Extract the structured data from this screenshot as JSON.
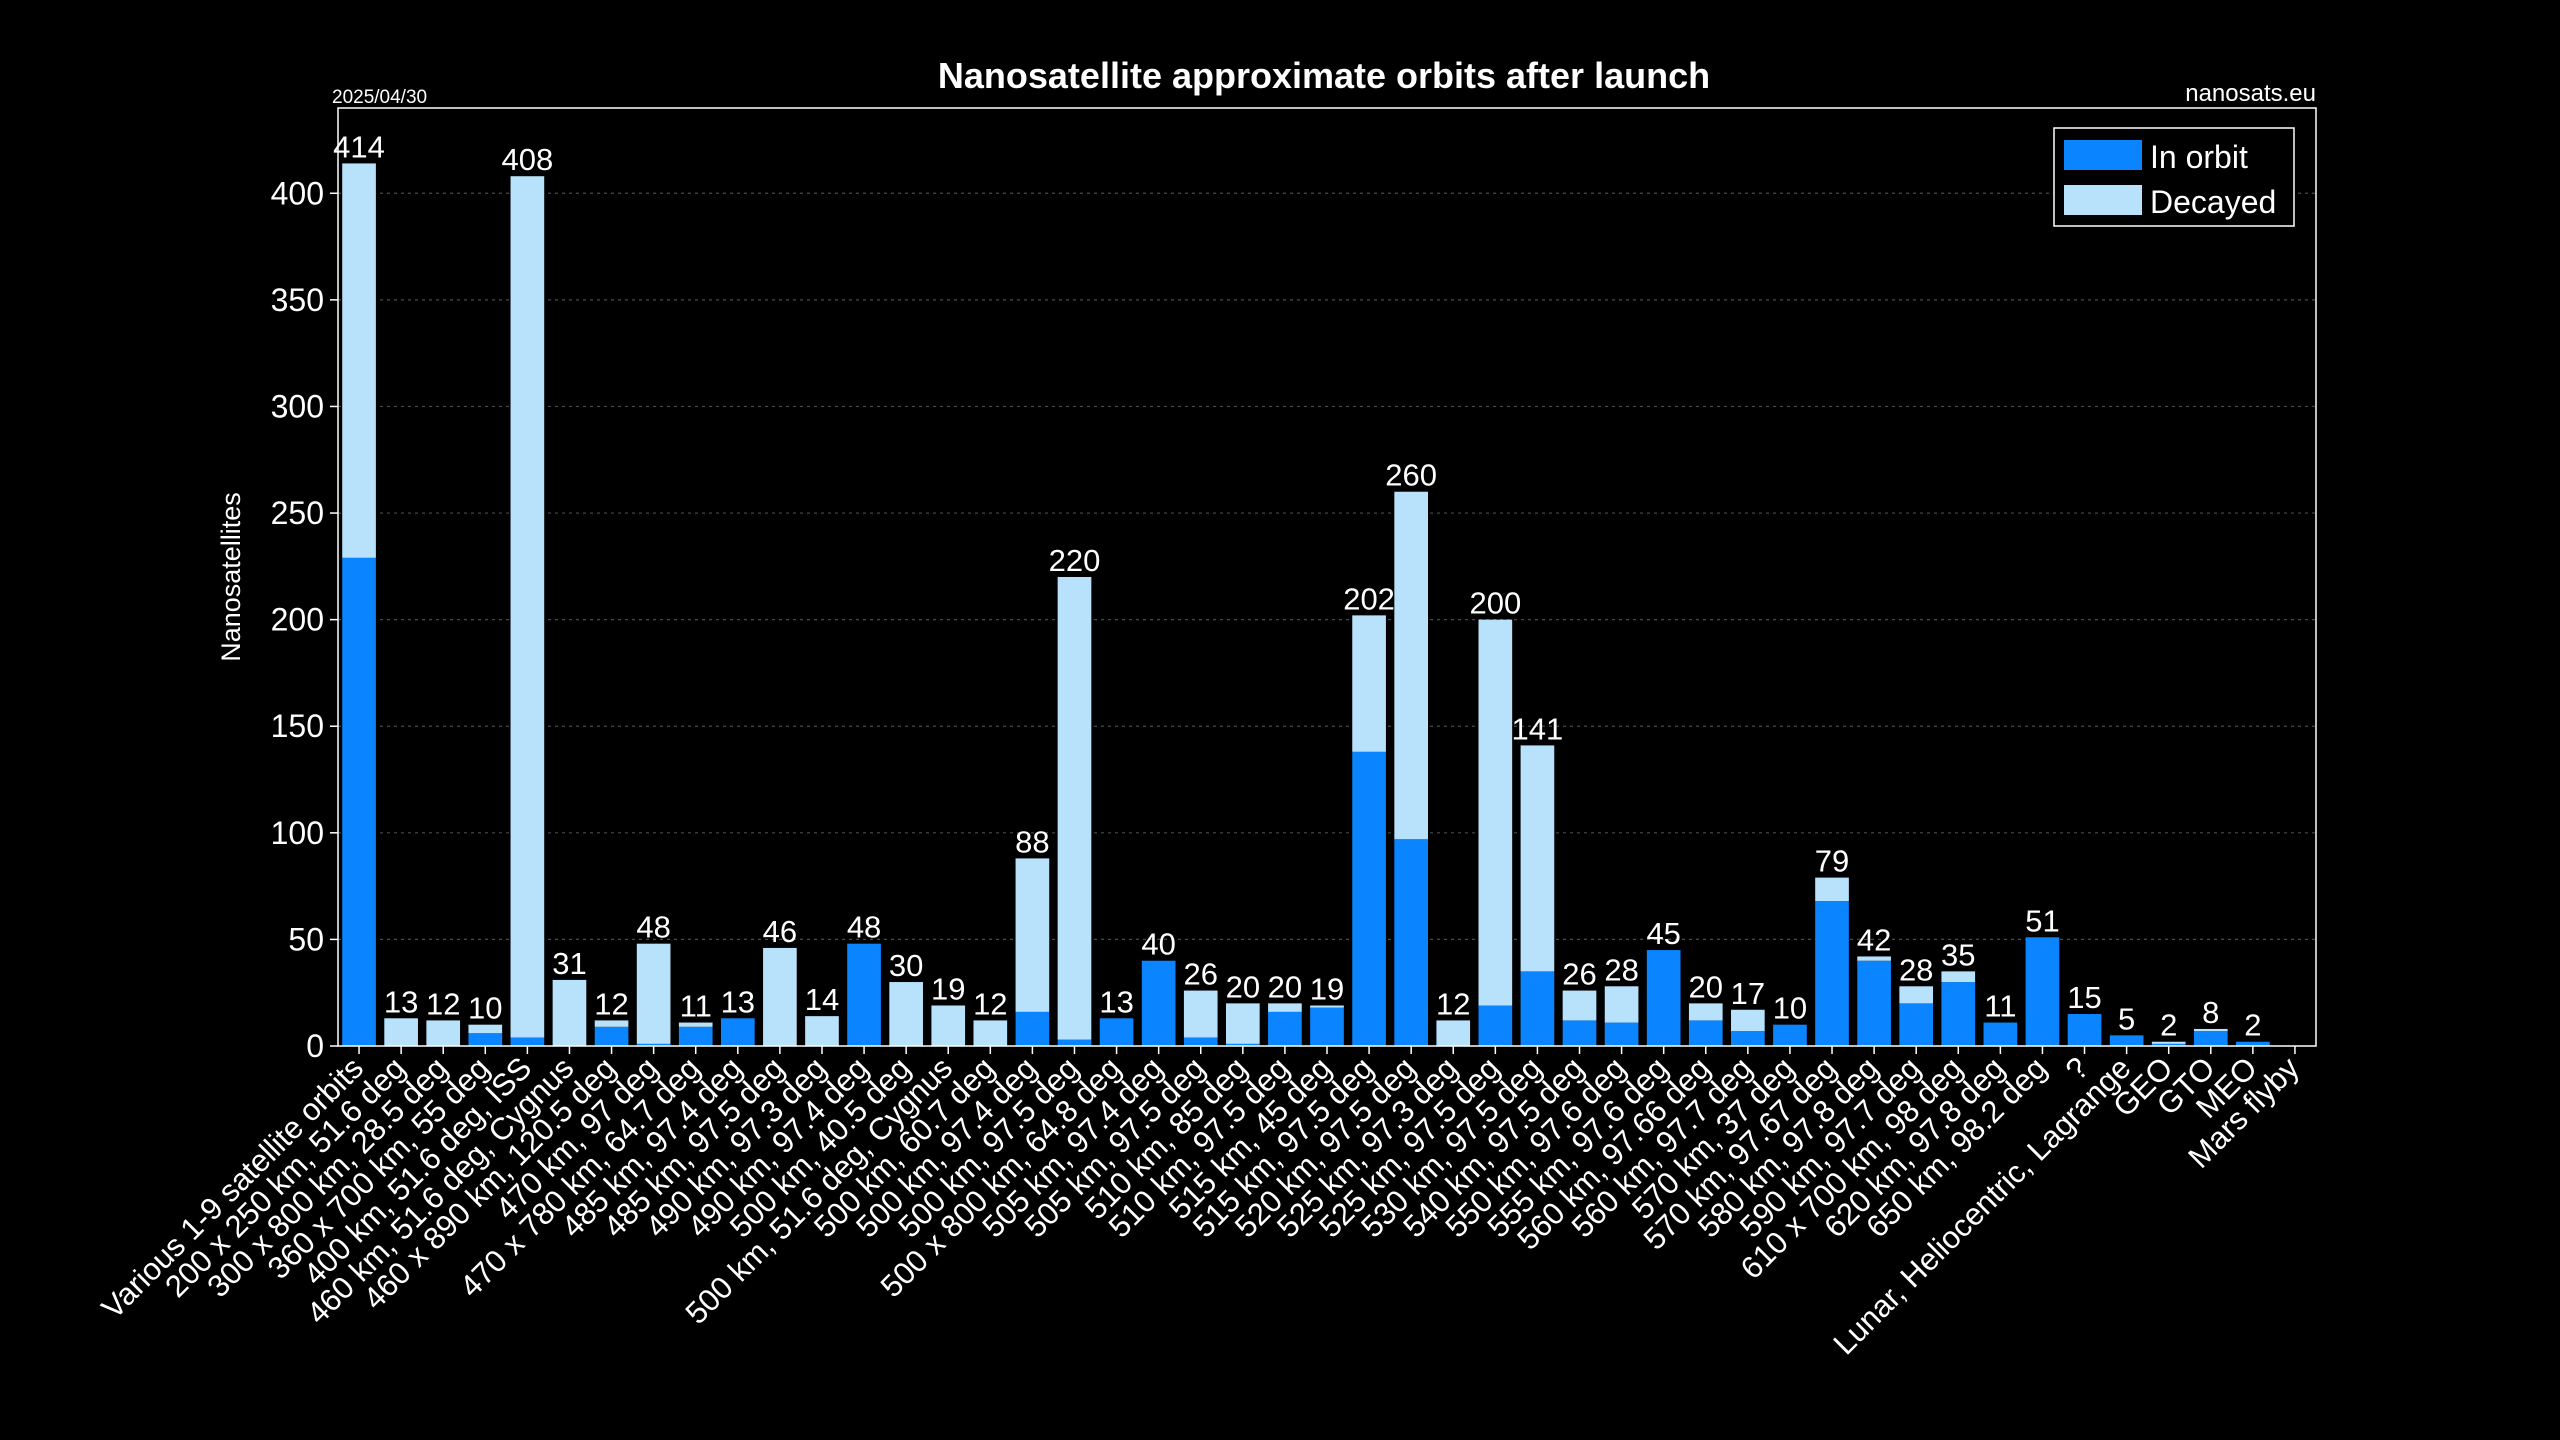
{
  "header": {
    "title": "Nanosatellite approximate orbits after launch",
    "date": "2025/04/30",
    "source": "nanosats.eu"
  },
  "colors": {
    "in_orbit": "#0a84ff",
    "decayed": "#b8e2fb",
    "background": "#000000"
  },
  "chart_data": {
    "type": "bar",
    "stacked": true,
    "title": "Nanosatellite approximate orbits after launch",
    "xlabel": "",
    "ylabel": "Nanosatellites",
    "ylim": [
      0,
      440
    ],
    "yticks": [
      0,
      50,
      100,
      150,
      200,
      250,
      300,
      350,
      400
    ],
    "grid": "y dotted",
    "legend_position": "top-right",
    "categories": [
      "Various 1-9 satellite orbits",
      "200 x 250 km, 51.6 deg",
      "300 x 800 km, 28.5 deg",
      "360 x 700 km, 55 deg",
      "400 km, 51.6 deg, ISS",
      "460 km, 51.6 deg, Cygnus",
      "460 x 890 km, 120.5 deg",
      "470 km, 97 deg",
      "470 x 780 km, 64.7 deg",
      "485 km, 97.4 deg",
      "485 km, 97.5 deg",
      "490 km, 97.3 deg",
      "490 km, 97.4 deg",
      "500 km, 40.5 deg",
      "500 km, 51.6 deg, Cygnus",
      "500 km, 60.7 deg",
      "500 km, 97.4 deg",
      "500 km, 97.5 deg",
      "500 x 800 km, 64.8 deg",
      "505 km, 97.4 deg",
      "505 km, 97.5 deg",
      "510 km, 85 deg",
      "510 km, 97.5 deg",
      "515 km, 45 deg",
      "515 km, 97.5 deg",
      "520 km, 97.5 deg",
      "525 km, 97.3 deg",
      "525 km, 97.5 deg",
      "530 km, 97.5 deg",
      "540 km, 97.5 deg",
      "550 km, 97.6 deg",
      "555 km, 97.6 deg",
      "560 km, 97.66 deg",
      "560 km, 97.7 deg",
      "570 km, 37 deg",
      "570 km, 97.67 deg",
      "580 km, 97.8 deg",
      "590 km, 97.7 deg",
      "610 x 700 km, 98 deg",
      "620 km, 97.8 deg",
      "650 km, 98.2 deg",
      "?",
      "Lunar, Heliocentric, Lagrange",
      "GEO",
      "GTO",
      "MEO",
      "Mars flyby"
    ],
    "totals": [
      414,
      13,
      12,
      10,
      408,
      31,
      12,
      48,
      11,
      13,
      46,
      14,
      48,
      30,
      19,
      12,
      88,
      220,
      13,
      40,
      26,
      20,
      20,
      19,
      202,
      260,
      12,
      200,
      141,
      26,
      28,
      45,
      20,
      17,
      10,
      79,
      42,
      28,
      35,
      11,
      51,
      15,
      5,
      2,
      8,
      2,
      0
    ],
    "series": [
      {
        "name": "In orbit",
        "values": [
          229,
          0,
          0,
          6,
          4,
          0,
          9,
          1,
          9,
          13,
          0,
          0,
          48,
          0,
          0,
          0,
          16,
          3,
          13,
          40,
          4,
          1,
          16,
          18,
          138,
          97,
          0,
          19,
          35,
          12,
          11,
          45,
          12,
          7,
          10,
          68,
          40,
          20,
          30,
          11,
          51,
          15,
          5,
          1,
          7,
          2,
          0
        ]
      },
      {
        "name": "Decayed",
        "values": [
          185,
          13,
          12,
          4,
          404,
          31,
          3,
          47,
          2,
          0,
          46,
          14,
          0,
          30,
          19,
          12,
          72,
          217,
          0,
          0,
          22,
          19,
          4,
          1,
          64,
          163,
          12,
          181,
          106,
          14,
          17,
          0,
          8,
          10,
          0,
          11,
          2,
          8,
          5,
          0,
          0,
          0,
          0,
          1,
          1,
          0,
          0
        ]
      }
    ]
  }
}
